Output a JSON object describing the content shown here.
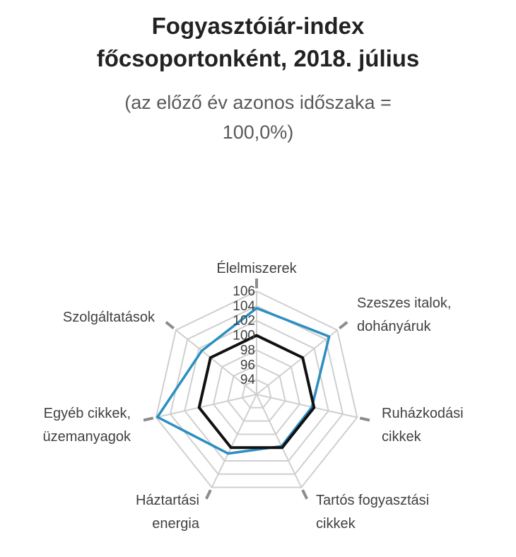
{
  "header": {
    "title_line1": "Fogyasztóiár-index",
    "title_line2": "főcsoportonként, 2018. július",
    "subtitle_line1": "(az előző év azonos időszaka =",
    "subtitle_line2": "100,0%)"
  },
  "chart_data": {
    "type": "radar",
    "title": "Fogyasztóiár-index főcsoportonként, 2018. július",
    "subtitle": "(az előző év azonos időszaka = 100,0%)",
    "categories": [
      [
        "Élelmiszerek"
      ],
      [
        "Szeszes italok,",
        "dohányáruk"
      ],
      [
        "Ruházkodási",
        "cikkek"
      ],
      [
        "Tartós fogyasztási",
        "cikkek"
      ],
      [
        "Háztartási",
        "energia"
      ],
      [
        "Egyéb cikkek,",
        "üzemanyagok"
      ],
      [
        "Szolgáltatások"
      ]
    ],
    "ticks": [
      "94",
      "96",
      "98",
      "100",
      "102",
      "104",
      "106"
    ],
    "rlim": [
      92,
      106
    ],
    "grid": true,
    "legend": "none",
    "series": [
      {
        "values": [
          103.7,
          104.6,
          99.7,
          99.8,
          100.9,
          105.8,
          101.5
        ],
        "color": "#2b8fc0"
      },
      {
        "values": [
          100.0,
          100.0,
          100.0,
          100.0,
          100.0,
          100.0,
          100.0
        ],
        "color": "#111111"
      }
    ]
  }
}
